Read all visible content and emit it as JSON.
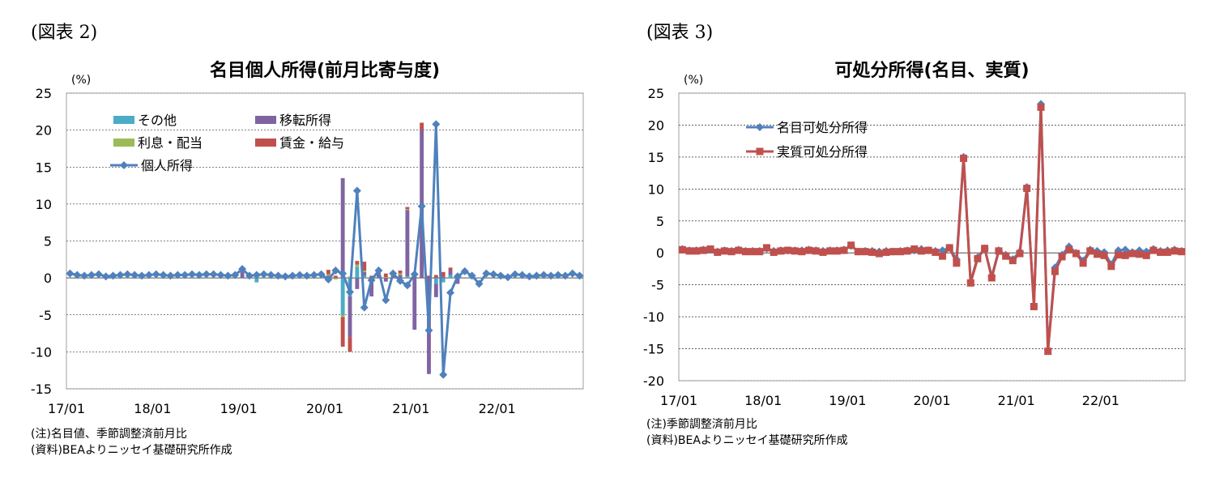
{
  "panels": [
    {
      "fig_label": "(図表 2)",
      "note": "(注)名目値、季節調整済前月比",
      "source": "(資料)BEAよりニッセイ基礎研究所作成"
    },
    {
      "fig_label": "(図表 3)",
      "note": "(注)季節調整済前月比",
      "source": "(資料)BEAよりニッセイ基礎研究所作成"
    }
  ],
  "chart_data": [
    {
      "type": "bar",
      "title": "名目個人所得(前月比寄与度)",
      "unit_label": "(%)",
      "ylim": [
        -15,
        25
      ],
      "yticks": [
        25,
        20,
        15,
        10,
        5,
        0,
        -5,
        -10,
        -15
      ],
      "xtick_labels": [
        "17/01",
        "18/01",
        "19/01",
        "20/01",
        "21/01",
        "22/01"
      ],
      "xtick_index": [
        0,
        12,
        24,
        36,
        48,
        60
      ],
      "n_months": 72,
      "grid": true,
      "legend_position": "top-left",
      "colors": {
        "other": "#4bacc6",
        "transfer": "#8064a2",
        "interest": "#9bbb59",
        "wage": "#c0504d",
        "line": "#4f81bd"
      },
      "bar_series": [
        {
          "key": "other",
          "name": "その他",
          "nonzero": [
            [
              26,
              -0.6
            ],
            [
              38,
              -5.0
            ],
            [
              39,
              -2.5
            ],
            [
              40,
              1.5
            ],
            [
              41,
              0.3
            ],
            [
              42,
              -0.5
            ],
            [
              47,
              0.2
            ],
            [
              51,
              -0.8
            ],
            [
              52,
              -0.6
            ],
            [
              53,
              0.4
            ]
          ]
        },
        {
          "key": "transfer",
          "name": "移転所得",
          "nonzero": [
            [
              24,
              0.8
            ],
            [
              36,
              0.3
            ],
            [
              38,
              13.5
            ],
            [
              39,
              -5.5
            ],
            [
              40,
              -1.5
            ],
            [
              41,
              0.5
            ],
            [
              42,
              -2.0
            ],
            [
              43,
              0.6
            ],
            [
              44,
              -0.5
            ],
            [
              46,
              0.4
            ],
            [
              47,
              9.0
            ],
            [
              48,
              -7.0
            ],
            [
              49,
              20.0
            ],
            [
              50,
              -13.0
            ],
            [
              51,
              -1.8
            ],
            [
              52,
              0.2
            ],
            [
              53,
              0.6
            ],
            [
              54,
              -0.8
            ]
          ]
        },
        {
          "key": "interest",
          "name": "利息・配当",
          "nonzero": [
            [
              36,
              0.2
            ],
            [
              37,
              -0.2
            ],
            [
              38,
              -0.3
            ],
            [
              39,
              0.2
            ],
            [
              40,
              0.3
            ],
            [
              41,
              0.2
            ],
            [
              44,
              0.1
            ],
            [
              46,
              0.2
            ],
            [
              47,
              0.1
            ]
          ]
        },
        {
          "key": "wage",
          "name": "賃金・給与",
          "nonzero": [
            [
              36,
              0.6
            ],
            [
              37,
              0.3
            ],
            [
              38,
              -4.0
            ],
            [
              39,
              -2.0
            ],
            [
              40,
              0.5
            ],
            [
              41,
              1.2
            ],
            [
              42,
              0.3
            ],
            [
              43,
              0.6
            ],
            [
              44,
              0.5
            ],
            [
              45,
              0.8
            ],
            [
              46,
              0.4
            ],
            [
              47,
              0.3
            ],
            [
              48,
              0.7
            ],
            [
              49,
              1.0
            ],
            [
              50,
              0.3
            ],
            [
              51,
              0.4
            ],
            [
              52,
              0.6
            ],
            [
              53,
              0.4
            ],
            [
              54,
              0.5
            ]
          ]
        }
      ],
      "line_series": {
        "name": "個人所得",
        "values": [
          0.6,
          0.4,
          0.3,
          0.4,
          0.5,
          0.2,
          0.3,
          0.4,
          0.5,
          0.4,
          0.3,
          0.4,
          0.5,
          0.4,
          0.3,
          0.4,
          0.4,
          0.5,
          0.4,
          0.5,
          0.5,
          0.4,
          0.3,
          0.4,
          1.2,
          0.3,
          0.4,
          0.5,
          0.4,
          0.3,
          0.2,
          0.3,
          0.4,
          0.3,
          0.4,
          0.5,
          -0.2,
          1.0,
          0.6,
          -1.9,
          11.8,
          -4.0,
          -0.3,
          1.0,
          -3.0,
          0.6,
          -0.4,
          -1.0,
          0.5,
          9.7,
          -7.1,
          20.8,
          -13.1,
          -2.0,
          0.2,
          0.9,
          0.3,
          -0.8,
          0.6,
          0.5,
          0.3,
          0.1,
          0.5,
          0.4,
          0.2,
          0.3,
          0.4,
          0.3,
          0.4,
          0.3,
          0.6,
          0.3
        ]
      }
    },
    {
      "type": "line",
      "title": "可処分所得(名目、実質)",
      "unit_label": "(%)",
      "ylim": [
        -20,
        25
      ],
      "yticks": [
        25,
        20,
        15,
        10,
        5,
        0,
        -5,
        -10,
        -15,
        -20
      ],
      "xtick_labels": [
        "17/01",
        "18/01",
        "19/01",
        "20/01",
        "21/01",
        "22/01"
      ],
      "xtick_index": [
        0,
        12,
        24,
        36,
        48,
        60
      ],
      "n_months": 72,
      "grid": true,
      "legend_position": "top-left",
      "series": [
        {
          "name": "名目可処分所得",
          "color": "#4f81bd",
          "marker": "diamond",
          "values": [
            0.6,
            0.4,
            0.4,
            0.5,
            0.5,
            0.2,
            0.4,
            0.3,
            0.5,
            0.3,
            0.3,
            0.3,
            0.7,
            0.3,
            0.4,
            0.4,
            0.4,
            0.4,
            0.5,
            0.4,
            0.3,
            0.4,
            0.4,
            0.5,
            1.1,
            0.2,
            0.3,
            0.3,
            0.2,
            0.3,
            0.2,
            0.3,
            0.4,
            0.4,
            0.6,
            0.4,
            0.3,
            0.4,
            0.8,
            -1.0,
            15.0,
            -4.5,
            -0.7,
            0.7,
            -3.7,
            0.4,
            -0.3,
            -1.0,
            0.2,
            10.3,
            -8.3,
            23.3,
            -15.2,
            -2.3,
            -0.3,
            1.0,
            0.0,
            -1.2,
            0.5,
            0.3,
            0.1,
            -1.8,
            0.4,
            0.5,
            0.1,
            0.4,
            0.2,
            0.6,
            0.3,
            0.4,
            0.5,
            0.3
          ]
        },
        {
          "name": "実質可処分所得",
          "color": "#c0504d",
          "marker": "square",
          "values": [
            0.5,
            0.3,
            0.3,
            0.4,
            0.6,
            0.1,
            0.3,
            0.2,
            0.4,
            0.2,
            0.2,
            0.2,
            0.8,
            0.1,
            0.3,
            0.4,
            0.3,
            0.2,
            0.4,
            0.3,
            0.1,
            0.3,
            0.3,
            0.4,
            1.2,
            0.2,
            0.2,
            0.1,
            -0.1,
            0.1,
            0.2,
            0.2,
            0.3,
            0.6,
            0.3,
            0.4,
            0.1,
            -0.5,
            0.8,
            -1.6,
            14.8,
            -4.7,
            -0.9,
            0.7,
            -3.9,
            0.3,
            -0.5,
            -1.2,
            -0.1,
            10.1,
            -8.4,
            22.8,
            -15.4,
            -2.9,
            -0.6,
            0.5,
            -0.1,
            -1.6,
            0.3,
            -0.2,
            -0.4,
            -2.1,
            -0.3,
            -0.4,
            -0.1,
            -0.2,
            -0.4,
            0.4,
            0.1,
            0.1,
            0.3,
            0.2
          ]
        }
      ]
    }
  ]
}
